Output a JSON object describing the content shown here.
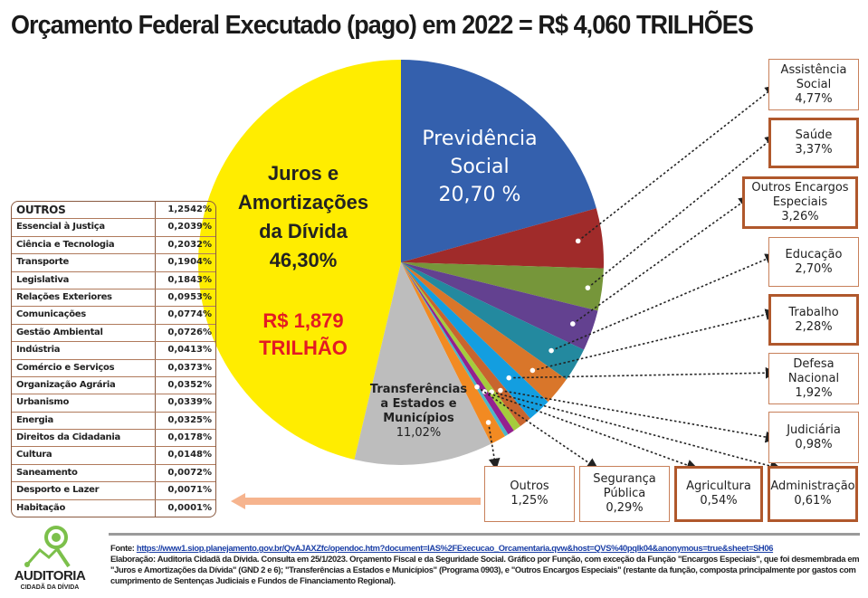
{
  "title": "Orçamento Federal Executado (pago) em 2022 = R$ 4,060 TRILHÕES",
  "chart_data": {
    "type": "pie",
    "title": "Orçamento Federal Executado (pago) em 2022 = R$ 4,060 TRILHÕES",
    "unit": "%",
    "slices": [
      {
        "name": "Previdência Social",
        "label": "20,70 %",
        "value": 20.7,
        "color": "#3460ad"
      },
      {
        "name": "Assistência Social",
        "label": "4,77%",
        "value": 4.77,
        "color": "#a02b2a"
      },
      {
        "name": "Saúde",
        "label": "3,37%",
        "value": 3.37,
        "color": "#76963a"
      },
      {
        "name": "Outros Encargos Especiais",
        "label": "3,26%",
        "value": 3.26,
        "color": "#634190"
      },
      {
        "name": "Educação",
        "label": "2,70%",
        "value": 2.7,
        "color": "#23899f"
      },
      {
        "name": "Trabalho",
        "label": "2,28%",
        "value": 2.28,
        "color": "#d9762a"
      },
      {
        "name": "Defesa Nacional",
        "label": "1,92%",
        "value": 1.92,
        "color": "#139ee0"
      },
      {
        "name": "Judiciária",
        "label": "0,98%",
        "value": 0.98,
        "color": "#c8652e"
      },
      {
        "name": "Administração",
        "label": "0,61%",
        "value": 0.61,
        "color": "#a5cc3c"
      },
      {
        "name": "Agricultura",
        "label": "0,54%",
        "value": 0.54,
        "color": "#94208f"
      },
      {
        "name": "Segurança Pública",
        "label": "0,29%",
        "value": 0.29,
        "color": "#4cb7c9"
      },
      {
        "name": "Outros",
        "label": "1,25%",
        "value": 1.25,
        "color": "#f28a22"
      },
      {
        "name": "Transferências a Estados e Municípios",
        "label": "11,02%",
        "value": 11.02,
        "color": "#bdbdbd"
      },
      {
        "name": "Juros e Amortizações da Dívida",
        "label": "46,30%",
        "value": 46.3,
        "color": "#ffed00"
      }
    ],
    "annotations": {
      "juros_amount_line1": "R$ 1,879",
      "juros_amount_line2": "TRILHÃO"
    }
  },
  "inner_labels": {
    "previdencia": [
      "Previdência",
      "Social",
      "20,70 %"
    ],
    "juros": [
      "Juros e",
      "Amortizações",
      "da Dívida",
      "46,30%"
    ],
    "transferencias": [
      "Transferências",
      "a Estados e",
      "Municípios",
      "11,02%"
    ]
  },
  "callouts": [
    {
      "lines": [
        "Assistência",
        "Social",
        "4,77%"
      ]
    },
    {
      "lines": [
        "Saúde",
        "3,37%"
      ]
    },
    {
      "lines": [
        "Outros Encargos",
        "Especiais",
        "3,26%"
      ]
    },
    {
      "lines": [
        "Educação",
        "2,70%"
      ]
    },
    {
      "lines": [
        "Trabalho",
        "2,28%"
      ]
    },
    {
      "lines": [
        "Defesa",
        "Nacional",
        "1,92%"
      ]
    },
    {
      "lines": [
        "Judiciária",
        "0,98%"
      ]
    },
    {
      "lines": [
        "Administração",
        "0,61%"
      ]
    },
    {
      "lines": [
        "Agricultura",
        "0,54%"
      ]
    },
    {
      "lines": [
        "Segurança",
        "Pública",
        "0,29%"
      ]
    },
    {
      "lines": [
        "Outros",
        "1,25%"
      ]
    }
  ],
  "outros_table": [
    {
      "name": "OUTROS",
      "value": "1,2542%"
    },
    {
      "name": "Essencial à Justiça",
      "value": "0,2039%"
    },
    {
      "name": "Ciência e Tecnologia",
      "value": "0,2032%"
    },
    {
      "name": "Transporte",
      "value": "0,1904%"
    },
    {
      "name": "Legislativa",
      "value": "0,1843%"
    },
    {
      "name": "Relações Exteriores",
      "value": "0,0953%"
    },
    {
      "name": "Comunicações",
      "value": "0,0774%"
    },
    {
      "name": "Gestão Ambiental",
      "value": "0,0726%"
    },
    {
      "name": "Indústria",
      "value": "0,0413%"
    },
    {
      "name": "Comércio e Serviços",
      "value": "0,0373%"
    },
    {
      "name": "Organização Agrária",
      "value": "0,0352%"
    },
    {
      "name": "Urbanismo",
      "value": "0,0339%"
    },
    {
      "name": "Energia",
      "value": "0,0325%"
    },
    {
      "name": "Direitos da Cidadania",
      "value": "0,0178%"
    },
    {
      "name": "Cultura",
      "value": "0,0148%"
    },
    {
      "name": "Saneamento",
      "value": "0,0072%"
    },
    {
      "name": "Desporto e Lazer",
      "value": "0,0071%"
    },
    {
      "name": "Habitação",
      "value": "0,0001%"
    }
  ],
  "footer": {
    "source_label": "Fonte:",
    "source_link": "https://www1.siop.planejamento.gov.br/QvAJAXZfc/opendoc.htm?document=IAS%2FExecucao_Orcamentaria.qvw&host=QVS%40pqlk04&anonymous=true&sheet=SH06",
    "note": "Elaboração: Auditoria Cidadã da Dívida. Consulta em 25/1/2023. Orçamento Fiscal e da Seguridade Social. Gráfico por Função, com exceção da Função \"Encargos Especiais\", que foi desmembrada em \"Juros e Amortizações da Dívida\" (GND 2 e 6); \"Transferências a Estados e Municípios\" (Programa 0903), e \"Outros Encargos Especiais\" (restante da função, composta principalmente por gastos com cumprimento de Sentenças Judiciais e Fundos de Financiamento Regional)."
  },
  "logo": {
    "line1": "AUDITORIA",
    "line2": "CIDADÃ DA DÍVIDA",
    "color": "#7cc04b"
  }
}
